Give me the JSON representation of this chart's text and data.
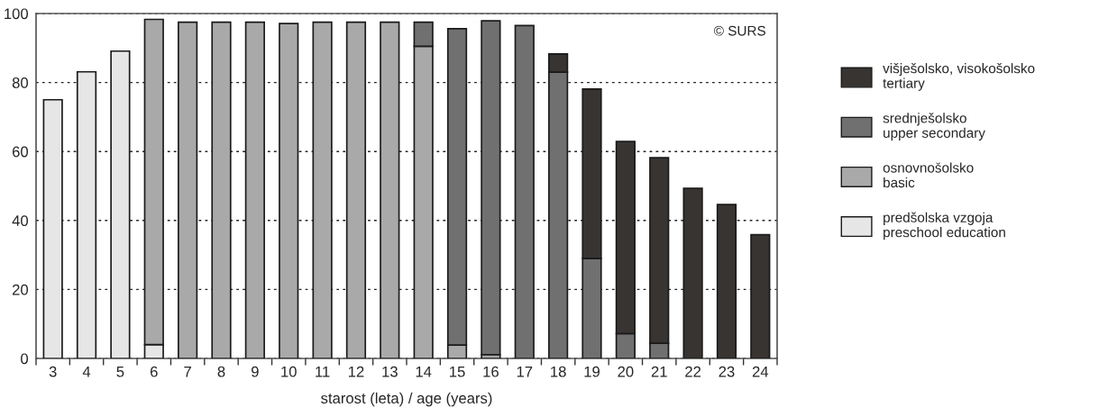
{
  "chart_data": {
    "type": "bar",
    "stacked": true,
    "xlabel": "starost (leta) / age (years)",
    "categories": [
      "3",
      "4",
      "5",
      "6",
      "7",
      "8",
      "9",
      "10",
      "11",
      "12",
      "13",
      "14",
      "15",
      "16",
      "17",
      "18",
      "19",
      "20",
      "21",
      "22",
      "23",
      "24"
    ],
    "series": [
      {
        "name": "predšolska vzgoja\npreschool education",
        "color": "#e6e6e6",
        "values": [
          75,
          83.1,
          89.1,
          4,
          null,
          null,
          null,
          null,
          null,
          null,
          null,
          null,
          null,
          null,
          null,
          null,
          null,
          null,
          null,
          null,
          null,
          null
        ]
      },
      {
        "name": "osnovnošolsko\nbasic",
        "color": "#a9a9a9",
        "values": [
          null,
          null,
          null,
          94.3,
          97.5,
          97.5,
          97.5,
          97.1,
          97.5,
          97.5,
          97.5,
          90.5,
          3.9,
          1.1,
          null,
          null,
          null,
          null,
          null,
          null,
          null,
          null
        ]
      },
      {
        "name": "srednješolsko\nupper secondary",
        "color": "#707070",
        "values": [
          null,
          null,
          null,
          null,
          null,
          null,
          null,
          null,
          null,
          null,
          null,
          7,
          91.7,
          96.8,
          96.5,
          83,
          29,
          7.2,
          4.4,
          null,
          null,
          null
        ]
      },
      {
        "name": "višješolsko, visokošolsko\ntertiary",
        "color": "#383432",
        "values": [
          null,
          null,
          null,
          null,
          null,
          null,
          null,
          null,
          null,
          null,
          null,
          null,
          null,
          null,
          null,
          5.3,
          49.1,
          55.7,
          53.8,
          49.3,
          44.6,
          35.9
        ]
      }
    ],
    "ylim": [
      0,
      100
    ],
    "yticks": [
      0,
      20,
      40,
      60,
      80,
      100
    ],
    "grid": "y",
    "legend": "right",
    "annotations": [
      "© SURS"
    ]
  }
}
